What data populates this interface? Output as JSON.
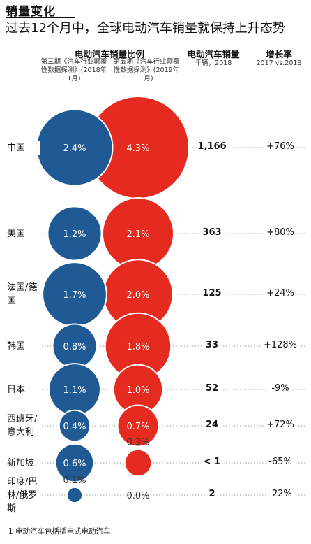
{
  "header": {
    "title": "销量变化",
    "subtitle": "过去12个月中，全球电动汽车销量就保持上升态势"
  },
  "columns": {
    "share": {
      "title": "电动汽车销量比例",
      "survey_3": "第三期《汽车行业颠覆性数据探测》(2018年1月)",
      "survey_5": "第五期《汽车行业颠覆性数据探测》(2019年1月)"
    },
    "sales": {
      "title": "电动汽车销量",
      "unit": "千辆，2018"
    },
    "growth": {
      "title": "增长率",
      "period": "2017 vs.2018"
    }
  },
  "colors": {
    "blue": "#1f5a94",
    "red": "#e52a20",
    "dots": "#9a9a9a"
  },
  "chart_data": {
    "type": "bubble-table",
    "title": "销量变化",
    "subtitle": "过去12个月中，全球电动汽车销量就保持上升态势",
    "series": [
      {
        "name": "第三期《汽车行业颠覆性数据探测》(2018年1月)",
        "unit": "%"
      },
      {
        "name": "第五期《汽车行业颠覆性数据探测》(2019年1月)",
        "unit": "%"
      }
    ],
    "rows": [
      {
        "country": "中国",
        "share_2018": "2.4%",
        "v2018": 2.4,
        "share_2019": "4.3%",
        "v2019": 4.3,
        "sales": "1,166",
        "growth": "+76%"
      },
      {
        "country": "美国",
        "share_2018": "1.2%",
        "v2018": 1.2,
        "share_2019": "2.1%",
        "v2019": 2.1,
        "sales": "363",
        "growth": "+80%"
      },
      {
        "country": "法国/德国",
        "share_2018": "1.7%",
        "v2018": 1.7,
        "share_2019": "2.0%",
        "v2019": 2.0,
        "sales": "125",
        "growth": "+24%"
      },
      {
        "country": "韩国",
        "share_2018": "0.8%",
        "v2018": 0.8,
        "share_2019": "1.8%",
        "v2019": 1.8,
        "sales": "33",
        "growth": "+128%"
      },
      {
        "country": "日本",
        "share_2018": "1.1%",
        "v2018": 1.1,
        "share_2019": "1.0%",
        "v2019": 1.0,
        "sales": "52",
        "growth": "-9%"
      },
      {
        "country": "西班牙/意大利",
        "share_2018": "0.4%",
        "v2018": 0.4,
        "share_2019": "0.7%",
        "v2019": 0.7,
        "sales": "24",
        "growth": "+72%"
      },
      {
        "country": "新加坡",
        "share_2018": "0.6%",
        "v2018": 0.6,
        "share_2019": "0.3%",
        "v2019": 0.3,
        "sales": "< 1",
        "growth": "-65%"
      },
      {
        "country": "印度/巴林/俄罗斯",
        "share_2018": "0.1%",
        "v2018": 0.1,
        "share_2019": "0.0%",
        "v2019": 0.0,
        "sales": "2",
        "growth": "-22%"
      }
    ]
  },
  "footnote": "1 电动汽车包括插电式电动汽车"
}
